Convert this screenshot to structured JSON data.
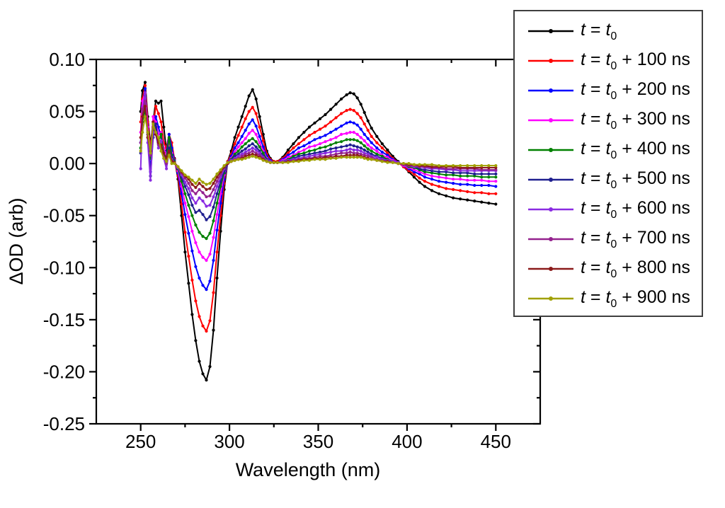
{
  "chart_data": {
    "type": "line",
    "title": "",
    "xlabel": "Wavelength (nm)",
    "ylabel": "ΔOD (arb)",
    "xlim": [
      225,
      475
    ],
    "ylim": [
      -0.25,
      0.1
    ],
    "xticks": [
      250,
      300,
      350,
      400,
      450
    ],
    "xticks_minor": [
      275,
      325,
      375,
      425
    ],
    "yticks": [
      0.1,
      0.05,
      0.0,
      -0.05,
      -0.1,
      -0.15,
      -0.2,
      -0.25
    ],
    "ytick_labels": [
      "0.10",
      "0.05",
      "0.00",
      "-0.05",
      "-0.10",
      "-0.15",
      "-0.20",
      "-0.25"
    ],
    "yticks_minor": [
      0.075,
      0.025,
      -0.025,
      -0.075,
      -0.125,
      -0.175,
      -0.225
    ],
    "grid": false,
    "legend": {
      "position": "outside-top-right",
      "variable": "t",
      "subscript": "0",
      "border": true
    },
    "x": [
      250,
      251,
      252.5,
      254,
      255.5,
      257,
      258.5,
      260,
      261.5,
      263,
      264.5,
      266,
      267.5,
      269,
      271,
      273,
      275,
      277,
      279,
      281,
      283,
      285,
      287,
      289,
      291,
      293,
      295,
      297,
      299,
      301,
      303,
      305,
      307,
      309,
      311,
      313,
      315,
      317,
      319,
      321,
      323,
      325,
      327,
      330,
      333,
      336,
      339,
      342,
      345,
      348,
      351,
      354,
      357,
      360,
      363,
      366,
      368,
      370,
      372,
      374,
      376,
      378,
      380,
      383,
      386,
      389,
      392,
      395,
      398,
      401,
      404,
      407,
      410,
      414,
      418,
      422,
      426,
      430,
      434,
      438,
      442,
      446,
      450
    ],
    "series": [
      {
        "label": "t = t₀",
        "label_rest": "",
        "color": "#000000",
        "values": [
          0.05,
          0.07,
          0.078,
          0.045,
          0.018,
          0.04,
          0.06,
          0.058,
          0.06,
          0.035,
          0.012,
          0.022,
          0.015,
          0.005,
          -0.015,
          -0.05,
          -0.085,
          -0.115,
          -0.145,
          -0.17,
          -0.19,
          -0.202,
          -0.208,
          -0.195,
          -0.16,
          -0.11,
          -0.065,
          -0.025,
          0.002,
          0.012,
          0.025,
          0.035,
          0.045,
          0.055,
          0.065,
          0.071,
          0.062,
          0.045,
          0.028,
          0.012,
          0.005,
          0.002,
          0.002,
          0.006,
          0.013,
          0.019,
          0.025,
          0.03,
          0.035,
          0.039,
          0.043,
          0.047,
          0.052,
          0.057,
          0.062,
          0.066,
          0.068,
          0.067,
          0.063,
          0.057,
          0.049,
          0.041,
          0.034,
          0.026,
          0.019,
          0.013,
          0.007,
          0.002,
          -0.003,
          -0.008,
          -0.013,
          -0.018,
          -0.022,
          -0.026,
          -0.029,
          -0.031,
          -0.033,
          -0.034,
          -0.035,
          -0.036,
          -0.037,
          -0.038,
          -0.039
        ]
      },
      {
        "label": "t = t₀ + 100 ns",
        "label_rest": " + 100 ns",
        "color": "#ff0000",
        "values": [
          0.04,
          0.062,
          0.075,
          0.04,
          0.015,
          0.035,
          0.055,
          0.048,
          0.04,
          0.02,
          0.015,
          0.028,
          0.02,
          0.004,
          -0.012,
          -0.039,
          -0.066,
          -0.089,
          -0.112,
          -0.132,
          -0.147,
          -0.156,
          -0.161,
          -0.151,
          -0.124,
          -0.085,
          -0.05,
          -0.019,
          0.002,
          0.009,
          0.019,
          0.027,
          0.035,
          0.043,
          0.05,
          0.054,
          0.048,
          0.035,
          0.022,
          0.009,
          0.004,
          0.002,
          0.002,
          0.005,
          0.01,
          0.015,
          0.019,
          0.023,
          0.027,
          0.03,
          0.033,
          0.036,
          0.04,
          0.044,
          0.048,
          0.051,
          0.052,
          0.051,
          0.048,
          0.044,
          0.038,
          0.032,
          0.026,
          0.02,
          0.015,
          0.01,
          0.005,
          0.001,
          -0.003,
          -0.007,
          -0.01,
          -0.014,
          -0.017,
          -0.02,
          -0.022,
          -0.024,
          -0.025,
          -0.026,
          -0.027,
          -0.028,
          -0.028,
          -0.029,
          -0.029
        ]
      },
      {
        "label": "t = t₀ + 200 ns",
        "label_rest": " + 200 ns",
        "color": "#0000ff",
        "values": [
          0.02,
          0.055,
          0.072,
          0.03,
          -0.008,
          0.03,
          0.045,
          0.035,
          0.025,
          0.012,
          0.01,
          0.028,
          0.015,
          0.003,
          -0.009,
          -0.029,
          -0.049,
          -0.067,
          -0.084,
          -0.099,
          -0.11,
          -0.117,
          -0.121,
          -0.113,
          -0.093,
          -0.064,
          -0.038,
          -0.015,
          0.001,
          0.007,
          0.015,
          0.02,
          0.026,
          0.032,
          0.038,
          0.042,
          0.036,
          0.026,
          0.016,
          0.007,
          0.003,
          0.001,
          0.001,
          0.004,
          0.008,
          0.011,
          0.015,
          0.017,
          0.02,
          0.023,
          0.025,
          0.027,
          0.03,
          0.033,
          0.036,
          0.039,
          0.04,
          0.039,
          0.037,
          0.033,
          0.028,
          0.024,
          0.02,
          0.015,
          0.011,
          0.008,
          0.004,
          0.001,
          -0.002,
          -0.005,
          -0.008,
          -0.01,
          -0.013,
          -0.015,
          -0.017,
          -0.018,
          -0.019,
          -0.02,
          -0.02,
          -0.021,
          -0.021,
          -0.021,
          -0.022
        ]
      },
      {
        "label": "t = t₀ + 300 ns",
        "label_rest": " + 300 ns",
        "color": "#ff00ff",
        "values": [
          0.03,
          0.06,
          0.068,
          0.035,
          0.01,
          0.045,
          0.04,
          0.028,
          0.03,
          0.015,
          0.008,
          0.02,
          0.01,
          0.002,
          -0.007,
          -0.022,
          -0.038,
          -0.051,
          -0.065,
          -0.076,
          -0.085,
          -0.09,
          -0.093,
          -0.087,
          -0.071,
          -0.049,
          -0.029,
          -0.011,
          0.001,
          0.005,
          0.011,
          0.016,
          0.02,
          0.024,
          0.029,
          0.032,
          0.028,
          0.02,
          0.012,
          0.005,
          0.002,
          0.001,
          0.001,
          0.003,
          0.006,
          0.008,
          0.011,
          0.013,
          0.016,
          0.017,
          0.019,
          0.021,
          0.023,
          0.025,
          0.028,
          0.029,
          0.03,
          0.03,
          0.028,
          0.025,
          0.022,
          0.018,
          0.015,
          0.012,
          0.008,
          0.006,
          0.003,
          0.001,
          -0.002,
          -0.004,
          -0.006,
          -0.008,
          -0.01,
          -0.012,
          -0.013,
          -0.014,
          -0.015,
          -0.015,
          -0.016,
          -0.016,
          -0.016,
          -0.017,
          -0.017
        ]
      },
      {
        "label": "t = t₀ + 400 ns",
        "label_rest": " + 400 ns",
        "color": "#008000",
        "values": [
          0.015,
          0.04,
          0.052,
          0.028,
          0.005,
          0.032,
          0.035,
          0.022,
          0.028,
          0.01,
          0.005,
          0.025,
          0.008,
          0.002,
          -0.005,
          -0.017,
          -0.029,
          -0.04,
          -0.05,
          -0.059,
          -0.066,
          -0.07,
          -0.072,
          -0.067,
          -0.055,
          -0.038,
          -0.022,
          -0.009,
          0.001,
          0.004,
          0.009,
          0.012,
          0.016,
          0.019,
          0.022,
          0.024,
          0.021,
          0.016,
          0.01,
          0.004,
          0.002,
          0.001,
          0.001,
          0.002,
          0.004,
          0.007,
          0.009,
          0.01,
          0.012,
          0.013,
          0.015,
          0.016,
          0.018,
          0.02,
          0.021,
          0.023,
          0.023,
          0.023,
          0.022,
          0.02,
          0.017,
          0.014,
          0.012,
          0.009,
          0.007,
          0.004,
          0.002,
          0.001,
          -0.001,
          -0.003,
          -0.004,
          -0.006,
          -0.008,
          -0.009,
          -0.01,
          -0.011,
          -0.011,
          -0.012,
          -0.012,
          -0.012,
          -0.013,
          -0.013,
          -0.013
        ]
      },
      {
        "label": "t = t₀ + 500 ns",
        "label_rest": " + 500 ns",
        "color": "#1f1f8f",
        "values": [
          0.01,
          0.045,
          0.065,
          0.025,
          -0.012,
          0.025,
          0.038,
          0.02,
          0.02,
          0.008,
          0.002,
          0.015,
          0.006,
          0.001,
          -0.004,
          -0.013,
          -0.022,
          -0.03,
          -0.04,
          -0.047,
          -0.045,
          -0.049,
          -0.054,
          -0.051,
          -0.042,
          -0.029,
          -0.017,
          -0.007,
          0.001,
          0.003,
          0.007,
          0.009,
          0.012,
          0.014,
          0.017,
          0.019,
          0.016,
          0.012,
          0.007,
          0.003,
          0.002,
          0.001,
          0.001,
          0.002,
          0.003,
          0.005,
          0.007,
          0.008,
          0.009,
          0.01,
          0.011,
          0.012,
          0.014,
          0.015,
          0.016,
          0.017,
          0.018,
          0.017,
          0.016,
          0.015,
          0.013,
          0.011,
          0.009,
          0.007,
          0.005,
          0.003,
          0.002,
          0.001,
          -0.001,
          -0.002,
          -0.003,
          -0.005,
          -0.006,
          -0.007,
          -0.008,
          -0.008,
          -0.009,
          -0.009,
          -0.009,
          -0.01,
          -0.01,
          -0.01,
          -0.01
        ]
      },
      {
        "label": "t = t₀ + 600 ns",
        "label_rest": " + 600 ns",
        "color": "#8a2be2",
        "values": [
          -0.005,
          0.05,
          0.068,
          0.02,
          -0.016,
          0.03,
          0.028,
          0.015,
          0.022,
          0.005,
          -0.005,
          0.012,
          0.004,
          0.001,
          -0.004,
          -0.011,
          -0.018,
          -0.024,
          -0.033,
          -0.038,
          -0.033,
          -0.036,
          -0.041,
          -0.04,
          -0.032,
          -0.022,
          -0.013,
          -0.005,
          0.001,
          0.003,
          0.005,
          0.007,
          0.009,
          0.011,
          0.013,
          0.015,
          0.013,
          0.01,
          0.006,
          0.003,
          0.002,
          0.001,
          0.001,
          0.002,
          0.003,
          0.004,
          0.005,
          0.006,
          0.007,
          0.008,
          0.009,
          0.01,
          0.011,
          0.012,
          0.012,
          0.013,
          0.014,
          0.013,
          0.013,
          0.012,
          0.01,
          0.009,
          0.007,
          0.006,
          0.004,
          0.003,
          0.002,
          0.001,
          -0.001,
          -0.002,
          -0.003,
          -0.003,
          -0.004,
          -0.005,
          -0.005,
          -0.006,
          -0.006,
          -0.007,
          -0.007,
          -0.007,
          -0.007,
          -0.007,
          -0.007
        ]
      },
      {
        "label": "t = t₀ + 700 ns",
        "label_rest": " + 700 ns",
        "color": "#94228e",
        "values": [
          0.02,
          0.052,
          0.06,
          0.03,
          0.008,
          0.035,
          0.03,
          0.018,
          0.015,
          0.008,
          0.0,
          0.01,
          0.003,
          0.001,
          -0.003,
          -0.009,
          -0.014,
          -0.019,
          -0.026,
          -0.029,
          -0.025,
          -0.028,
          -0.032,
          -0.031,
          -0.025,
          -0.017,
          -0.01,
          -0.004,
          0.0,
          0.002,
          0.004,
          0.005,
          0.007,
          0.009,
          0.01,
          0.012,
          0.01,
          0.008,
          0.005,
          0.002,
          0.001,
          0.001,
          0.001,
          0.001,
          0.002,
          0.003,
          0.004,
          0.005,
          0.005,
          0.006,
          0.007,
          0.007,
          0.008,
          0.009,
          0.01,
          0.01,
          0.011,
          0.01,
          0.01,
          0.009,
          0.008,
          0.007,
          0.006,
          0.004,
          0.003,
          0.002,
          0.001,
          0.0,
          -0.001,
          -0.002,
          -0.002,
          -0.003,
          -0.003,
          -0.004,
          -0.004,
          -0.005,
          -0.005,
          -0.005,
          -0.005,
          -0.005,
          -0.006,
          -0.006,
          -0.006
        ]
      },
      {
        "label": "t = t₀ + 800 ns",
        "label_rest": " + 800 ns",
        "color": "#8b1a1a",
        "values": [
          0.025,
          0.045,
          0.055,
          0.025,
          0.012,
          0.04,
          0.028,
          0.02,
          0.018,
          0.01,
          0.005,
          0.012,
          0.002,
          0.001,
          -0.003,
          -0.008,
          -0.012,
          -0.015,
          -0.02,
          -0.023,
          -0.019,
          -0.022,
          -0.025,
          -0.024,
          -0.019,
          -0.013,
          -0.008,
          -0.003,
          0.0,
          0.002,
          0.003,
          0.004,
          0.005,
          0.007,
          0.008,
          0.009,
          0.008,
          0.006,
          0.004,
          0.002,
          0.001,
          0.001,
          0.001,
          0.001,
          0.002,
          0.002,
          0.003,
          0.004,
          0.004,
          0.005,
          0.005,
          0.006,
          0.006,
          0.007,
          0.007,
          0.008,
          0.008,
          0.008,
          0.008,
          0.007,
          0.006,
          0.005,
          0.004,
          0.003,
          0.002,
          0.002,
          0.001,
          0.0,
          0.0,
          -0.001,
          -0.001,
          -0.002,
          -0.002,
          -0.003,
          -0.003,
          -0.003,
          -0.003,
          -0.004,
          -0.004,
          -0.004,
          -0.004,
          -0.004,
          -0.004
        ]
      },
      {
        "label": "t = t₀ + 900 ns",
        "label_rest": " + 900 ns",
        "color": "#a0a000",
        "values": [
          0.012,
          0.03,
          0.045,
          0.03,
          0.01,
          0.038,
          0.03,
          0.025,
          0.012,
          0.005,
          0.002,
          0.008,
          0.0,
          0.0,
          -0.003,
          -0.007,
          -0.011,
          -0.013,
          -0.016,
          -0.019,
          -0.015,
          -0.018,
          -0.02,
          -0.019,
          -0.015,
          -0.01,
          -0.006,
          -0.002,
          0.001,
          0.002,
          0.003,
          0.004,
          0.004,
          0.005,
          0.006,
          0.007,
          0.006,
          0.005,
          0.003,
          0.002,
          0.001,
          0.001,
          0.001,
          0.001,
          0.001,
          0.002,
          0.002,
          0.003,
          0.003,
          0.004,
          0.004,
          0.004,
          0.005,
          0.005,
          0.006,
          0.006,
          0.006,
          0.006,
          0.006,
          0.006,
          0.005,
          0.004,
          0.004,
          0.003,
          0.002,
          0.001,
          0.001,
          0.0,
          0.0,
          0.0,
          -0.001,
          -0.001,
          -0.001,
          -0.001,
          -0.002,
          -0.002,
          -0.002,
          -0.002,
          -0.002,
          -0.002,
          -0.002,
          -0.002,
          -0.002
        ]
      }
    ]
  }
}
